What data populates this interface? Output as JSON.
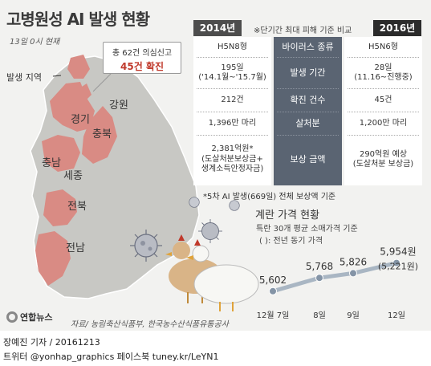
{
  "header": {
    "title": "고병원성 AI 발생 현황",
    "as_of": "13일 0시 현재"
  },
  "map": {
    "callout_line1": "총 62건 의심신고",
    "callout_line2": "45건 확진",
    "outbreak_label": "발생 지역",
    "regions": [
      "강원",
      "경기",
      "충북",
      "충남",
      "세종",
      "전북",
      "전남"
    ],
    "region_color": "#d98b84"
  },
  "comparison": {
    "year_left": "2014년",
    "year_right": "2016년",
    "note": "※단기간 최대 피해 기준 비교",
    "rows": [
      {
        "label": "바이러스 종류",
        "left": [
          "H5N8형"
        ],
        "right": [
          "H5N6형"
        ]
      },
      {
        "label": "발생 기간",
        "left": [
          "195일",
          "('14.1월~'15.7월)"
        ],
        "right": [
          "28일",
          "(11.16~진행중)"
        ]
      },
      {
        "label": "확진 건수",
        "left": [
          "212건"
        ],
        "right": [
          "45건"
        ]
      },
      {
        "label": "살처분",
        "left": [
          "1,396만 마리"
        ],
        "right": [
          "1,200만 마리"
        ]
      },
      {
        "label": "보상 금액",
        "left": [
          "2,381억원*",
          "(도살처분보상금+",
          "생계소득안정자금)"
        ],
        "right": [
          "290억원 예상",
          "(도살처분 보상금)"
        ]
      }
    ],
    "footnote": "*5차 AI 발생(669일) 전체 보상액 기준"
  },
  "price_chart_header": {
    "title": "계란 가격 현황",
    "subtitle": "특란 30개 평균 소매가격 기준",
    "legend": "( ): 전년 동기 가격"
  },
  "chart_data": {
    "type": "line",
    "title": "계란 가격 현황",
    "categories": [
      "12월 7일",
      "8일",
      "9일",
      "12일"
    ],
    "series": [
      {
        "values": [
          5602,
          5768,
          5826,
          5954
        ]
      }
    ],
    "value_labels": [
      "5,602",
      "5,768",
      "5,826",
      "5,954원"
    ],
    "previous_year_label": "(5,221원)",
    "line_color": "#a9b6c3",
    "marker_color": "#8494a6"
  },
  "footer": {
    "logo": "연합뉴스",
    "source": "자료/ 농림축산식품부, 한국농수산식품유통공사",
    "credit": "장예진 기자 / 20161213",
    "sns": "트위터 @yonhap_graphics  페이스북 tuney.kr/LeYN1"
  }
}
